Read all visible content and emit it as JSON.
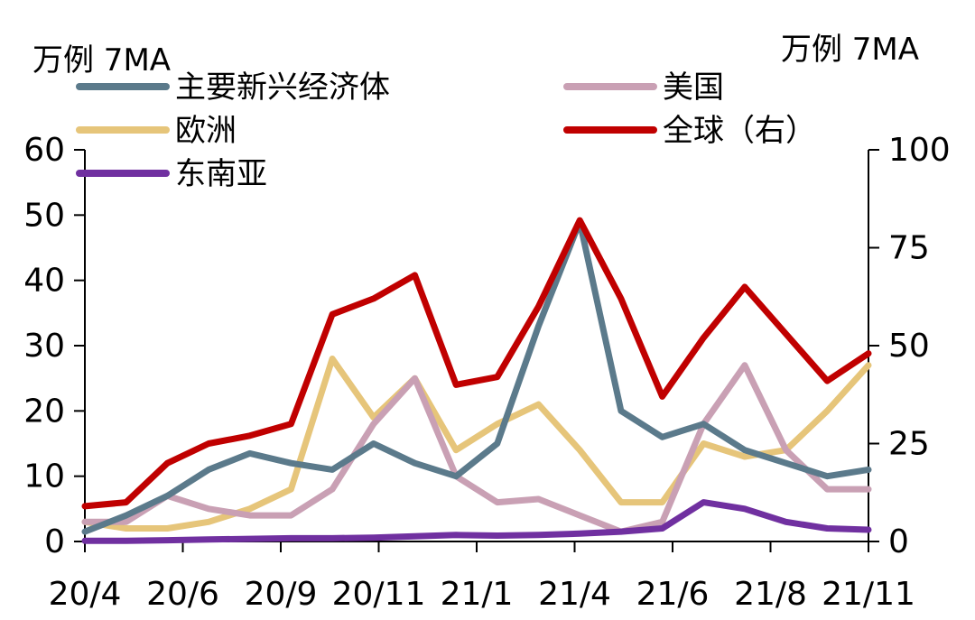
{
  "chart_data": {
    "type": "line",
    "left_unit": "万例 7MA",
    "right_unit": "万例 7MA",
    "x_tick_labels": [
      "20/4",
      "20/6",
      "20/9",
      "20/11",
      "21/1",
      "21/4",
      "21/6",
      "21/8",
      "21/11"
    ],
    "y_left": {
      "range": [
        0,
        60
      ],
      "ticks": [
        0,
        10,
        20,
        30,
        40,
        50,
        60
      ]
    },
    "y_right": {
      "range": [
        0,
        100
      ],
      "ticks": [
        0,
        25,
        50,
        75,
        100
      ]
    },
    "x": [
      "2020-04",
      "2020-05",
      "2020-06",
      "2020-07",
      "2020-08",
      "2020-09",
      "2020-10",
      "2020-11",
      "2020-12",
      "2021-01",
      "2021-02",
      "2021-03",
      "2021-04",
      "2021-05",
      "2021-06",
      "2021-07",
      "2021-08",
      "2021-09",
      "2021-10",
      "2021-11"
    ],
    "legend_position": "top",
    "series": [
      {
        "name": "主要新兴经济体",
        "axis": "left",
        "color": "#5B7A8B",
        "values": [
          1.5,
          4,
          7,
          11,
          13.5,
          12,
          11,
          15,
          12,
          10,
          15,
          33,
          49,
          20,
          16,
          18,
          14,
          12,
          10,
          11
        ]
      },
      {
        "name": "美国",
        "axis": "left",
        "color": "#C9A0B4",
        "values": [
          3,
          3,
          7,
          5,
          4,
          4,
          8,
          18,
          25,
          10,
          6,
          6.5,
          4,
          1.5,
          3,
          18,
          27,
          14,
          8,
          8
        ]
      },
      {
        "name": "欧洲",
        "axis": "left",
        "color": "#E6C57A",
        "values": [
          3,
          2,
          2,
          3,
          5,
          8,
          28,
          19,
          25,
          14,
          18,
          21,
          14,
          6,
          6,
          15,
          13,
          14,
          20,
          27
        ]
      },
      {
        "name": "全球（右）",
        "axis": "right",
        "color": "#C00000",
        "values": [
          9,
          10,
          20,
          25,
          27,
          30,
          58,
          62,
          68,
          40,
          42,
          60,
          82,
          62,
          37,
          52,
          65,
          53,
          41,
          48
        ]
      },
      {
        "name": "东南亚",
        "axis": "left",
        "color": "#7030A0",
        "values": [
          0.1,
          0.1,
          0.2,
          0.3,
          0.4,
          0.5,
          0.5,
          0.6,
          0.8,
          1,
          0.9,
          1,
          1.2,
          1.5,
          2,
          6,
          5,
          3,
          2,
          1.8
        ]
      }
    ]
  }
}
